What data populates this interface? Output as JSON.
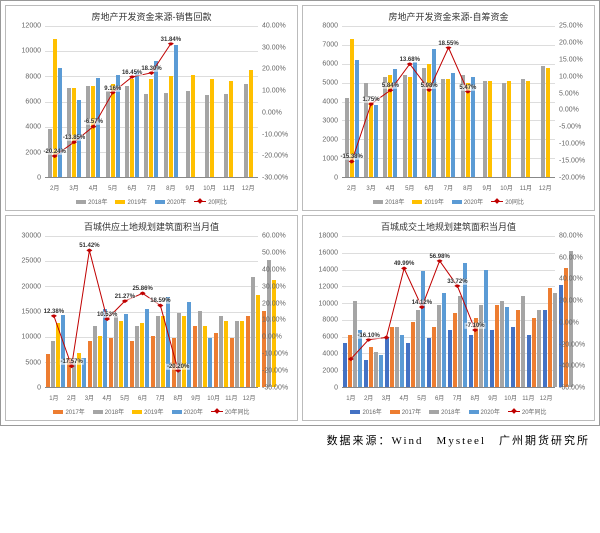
{
  "colors": {
    "series": {
      "c2016": "#4472c4",
      "c2017": "#ed7d31",
      "c2018": "#a5a5a5",
      "c2019": "#ffc000",
      "c2020": "#5b9bd5",
      "line": "#c00000"
    },
    "grid": "#dddddd",
    "axis": "#888888"
  },
  "source_line": "数据来源：Wind　Mysteel　广州期货研究所",
  "panels": [
    {
      "title": "房地产开发资金来源-销售回款",
      "y_left": {
        "min": 0,
        "max": 12000,
        "step": 2000
      },
      "y_right": {
        "min": -30,
        "max": 40,
        "step": 10,
        "suffix": "%"
      },
      "x_labels": [
        "2月",
        "3月",
        "4月",
        "5月",
        "6月",
        "7月",
        "8月",
        "9月",
        "10月",
        "11月",
        "12月"
      ],
      "bar_series": [
        {
          "name": "2018年",
          "color": "c2018",
          "data": [
            3800,
            7100,
            7200,
            6800,
            7200,
            6600,
            6700,
            6800,
            6500,
            6600,
            7400
          ]
        },
        {
          "name": "2019年",
          "color": "c2019",
          "data": [
            11000,
            7100,
            7200,
            7400,
            7800,
            7800,
            8000,
            8100,
            7800,
            7600,
            8500
          ]
        },
        {
          "name": "2020年",
          "color": "c2020",
          "data": [
            8700,
            6100,
            7900,
            8100,
            8400,
            9200,
            10500,
            null,
            null,
            null,
            null
          ]
        }
      ],
      "line_series": {
        "name": "20同比",
        "color": "line",
        "data": [
          -20.24,
          -13.85,
          -6.57,
          9.16,
          16.45,
          18.3,
          31.84,
          null,
          null,
          null,
          null
        ],
        "labels": [
          "-20.24%",
          "-13.85%",
          "-6.57%",
          "9.16%",
          "16.45%",
          "18.30%",
          "31.84%"
        ]
      }
    },
    {
      "title": "房地产开发资金来源-自筹资金",
      "y_left": {
        "min": 0,
        "max": 8000,
        "step": 1000
      },
      "y_right": {
        "min": -20,
        "max": 25,
        "step": 5,
        "suffix": "%"
      },
      "x_labels": [
        "2月",
        "3月",
        "4月",
        "5月",
        "6月",
        "7月",
        "8月",
        "9月",
        "10月",
        "11月",
        "12月"
      ],
      "bar_series": [
        {
          "name": "2018年",
          "color": "c2018",
          "data": [
            4200,
            5000,
            5300,
            5400,
            5800,
            5200,
            5400,
            5100,
            5000,
            5200,
            5900
          ]
        },
        {
          "name": "2019年",
          "color": "c2019",
          "data": [
            7300,
            4000,
            5400,
            5300,
            6000,
            5200,
            5000,
            5100,
            5100,
            5100,
            5800
          ]
        },
        {
          "name": "2020年",
          "color": "c2020",
          "data": [
            6200,
            3800,
            5700,
            6100,
            6800,
            5500,
            5300,
            null,
            null,
            null,
            null
          ]
        }
      ],
      "line_series": {
        "name": "20同比",
        "color": "line",
        "data": [
          -15.38,
          1.75,
          5.84,
          13.68,
          5.98,
          18.55,
          5.47,
          null,
          null,
          null,
          null
        ],
        "labels": [
          "-15.38%",
          "1.75%",
          "5.84%",
          "13.68%",
          "5.98%",
          "18.55%",
          "5.47%"
        ]
      }
    },
    {
      "title": "百城供应土地规划建筑面积当月值",
      "y_left": {
        "min": 0,
        "max": 30000,
        "step": 5000
      },
      "y_right": {
        "min": -30,
        "max": 60,
        "step": 10,
        "suffix": "%"
      },
      "x_labels": [
        "1月",
        "2月",
        "3月",
        "4月",
        "5月",
        "6月",
        "7月",
        "8月",
        "9月",
        "10月",
        "11月",
        "12月"
      ],
      "bar_series": [
        {
          "name": "2017年",
          "color": "c2017",
          "data": [
            6500,
            5800,
            9200,
            9800,
            9200,
            10200,
            9800,
            12200,
            10800,
            9800,
            14200,
            15200
          ]
        },
        {
          "name": "2018年",
          "color": "c2018",
          "data": [
            9200,
            5200,
            12200,
            14200,
            12200,
            14200,
            14800,
            15200,
            14200,
            13200,
            21800,
            25200
          ]
        },
        {
          "name": "2019年",
          "color": "c2019",
          "data": [
            12800,
            6800,
            10200,
            13200,
            12800,
            14200,
            14200,
            12200,
            13200,
            13200,
            18200,
            21200
          ]
        },
        {
          "name": "2020年",
          "color": "c2020",
          "data": [
            14400,
            5800,
            15500,
            14600,
            15500,
            17800,
            16800,
            9800,
            null,
            null,
            null,
            null
          ]
        }
      ],
      "line_series": {
        "name": "20年同比",
        "color": "line",
        "data": [
          12.38,
          -17.57,
          51.42,
          10.53,
          21.27,
          25.86,
          18.59,
          -20.2,
          null,
          null,
          null,
          null
        ],
        "labels": [
          "12.38%",
          "-17.57%",
          "51.42%",
          "10.53%",
          "21.27%",
          "25.86%",
          "18.59%",
          "-20.20%"
        ]
      }
    },
    {
      "title": "百城成交土地规划建筑面积当月值",
      "y_left": {
        "min": 0,
        "max": 18000,
        "step": 2000
      },
      "y_right": {
        "min": -60,
        "max": 80,
        "step": 20,
        "suffix": "%"
      },
      "x_labels": [
        "1月",
        "2月",
        "3月",
        "4月",
        "5月",
        "6月",
        "7月",
        "8月",
        "9月",
        "10月",
        "11月",
        "12月"
      ],
      "bar_series": [
        {
          "name": "2016年",
          "color": "c2016",
          "data": [
            5200,
            3200,
            5800,
            5200,
            5800,
            6800,
            6200,
            6800,
            7200,
            6200,
            9200,
            12200
          ]
        },
        {
          "name": "2017年",
          "color": "c2017",
          "data": [
            6200,
            4800,
            7200,
            7800,
            7200,
            8800,
            8200,
            9800,
            9200,
            8200,
            11800,
            14200
          ]
        },
        {
          "name": "2018年",
          "color": "c2018",
          "data": [
            10200,
            4200,
            7200,
            9200,
            9800,
            10800,
            9800,
            10200,
            10800,
            9200,
            11200,
            16200
          ]
        },
        {
          "name": "2020年",
          "color": "c2020",
          "data": [
            6800,
            3800,
            6200,
            13800,
            11200,
            14800,
            13900,
            9500,
            null,
            null,
            null,
            null
          ]
        }
      ],
      "line_series": {
        "name": "20年同比",
        "color": "line",
        "data": [
          -34.0,
          -16.1,
          -14.12,
          49.99,
          14.12,
          56.98,
          33.72,
          -7.1,
          null,
          null,
          null,
          null
        ],
        "labels": [
          "",
          "-16.10%",
          "",
          "49.99%",
          "14.12%",
          "56.98%",
          "33.72%",
          "-7.10%"
        ]
      }
    }
  ]
}
